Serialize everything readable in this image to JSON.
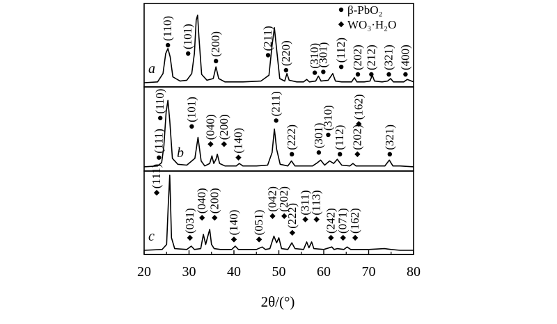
{
  "chart_data": {
    "type": "line",
    "xlabel": "2θ/(°)",
    "xlim": [
      20,
      80
    ],
    "x_ticks": [
      "20",
      "30",
      "40",
      "50",
      "60",
      "70",
      "80"
    ],
    "grid": false,
    "legend": {
      "placement": "top-right",
      "entries": [
        {
          "marker": "circle",
          "label": "β-PbO₂"
        },
        {
          "marker": "diamond",
          "label": "WO₃·H₂O"
        }
      ]
    },
    "series": [
      {
        "name": "a",
        "baseline": 0.05,
        "x": [
          20,
          23,
          24.2,
          24.8,
          25.3,
          25.8,
          26.4,
          28,
          29.5,
          30.6,
          31.2,
          31.6,
          31.9,
          32.2,
          32.8,
          34,
          35.4,
          36.0,
          36.6,
          38,
          42,
          46,
          47.8,
          48.5,
          49.0,
          49.5,
          50.2,
          51.3,
          51.8,
          52.3,
          54,
          55.5,
          56.2,
          56.8,
          58.2,
          58.8,
          59.4,
          61,
          62.0,
          62.6,
          64,
          66.2,
          66.8,
          67.4,
          69,
          70.3,
          70.8,
          71.3,
          73,
          74.2,
          74.9,
          75.5,
          77,
          77.8,
          78.6,
          80
        ],
        "y": [
          0.05,
          0.06,
          0.16,
          0.4,
          0.46,
          0.36,
          0.12,
          0.07,
          0.08,
          0.16,
          0.4,
          0.8,
          0.86,
          0.6,
          0.15,
          0.08,
          0.1,
          0.24,
          0.1,
          0.06,
          0.06,
          0.07,
          0.14,
          0.5,
          0.71,
          0.45,
          0.1,
          0.07,
          0.16,
          0.08,
          0.06,
          0.06,
          0.09,
          0.06,
          0.07,
          0.13,
          0.07,
          0.08,
          0.16,
          0.07,
          0.06,
          0.06,
          0.11,
          0.06,
          0.06,
          0.07,
          0.14,
          0.07,
          0.06,
          0.07,
          0.1,
          0.06,
          0.06,
          0.06,
          0.09,
          0.06
        ]
      },
      {
        "name": "b",
        "baseline": 0.05,
        "x": [
          20,
          23,
          23.9,
          24.4,
          24.9,
          25.3,
          25.7,
          26.3,
          27.5,
          29.5,
          31.3,
          32.0,
          32.7,
          33.5,
          34.6,
          35.1,
          35.5,
          36.0,
          36.3,
          36.8,
          38,
          40.5,
          41.2,
          42,
          45,
          47.5,
          48.5,
          49.0,
          49.5,
          50.3,
          52,
          52.8,
          53.6,
          55,
          57.5,
          58.6,
          59.3,
          60.2,
          61.3,
          62.2,
          63.0,
          64,
          65.8,
          66.5,
          67.2,
          68.5,
          70,
          72,
          73.6,
          74.6,
          75.4,
          77,
          80
        ],
        "y": [
          0.05,
          0.06,
          0.1,
          0.3,
          0.7,
          0.84,
          0.6,
          0.15,
          0.08,
          0.07,
          0.15,
          0.4,
          0.12,
          0.06,
          0.09,
          0.18,
          0.09,
          0.14,
          0.2,
          0.09,
          0.06,
          0.06,
          0.09,
          0.06,
          0.06,
          0.07,
          0.22,
          0.5,
          0.26,
          0.08,
          0.06,
          0.12,
          0.06,
          0.06,
          0.06,
          0.1,
          0.13,
          0.07,
          0.12,
          0.09,
          0.14,
          0.07,
          0.06,
          0.09,
          0.06,
          0.06,
          0.06,
          0.06,
          0.06,
          0.13,
          0.06,
          0.06,
          0.05
        ]
      },
      {
        "name": "c",
        "baseline": 0.05,
        "x": [
          20,
          24,
          25.0,
          25.4,
          25.7,
          26.1,
          26.8,
          29.5,
          30.5,
          31.2,
          32.6,
          33.2,
          33.7,
          34.1,
          34.6,
          35.0,
          35.6,
          37,
          39.5,
          40.3,
          41,
          45,
          46.3,
          47,
          48,
          48.9,
          49.5,
          50.0,
          50.6,
          52,
          52.9,
          53.6,
          55.5,
          56.2,
          56.7,
          57.3,
          57.8,
          60,
          61.8,
          62.3,
          63,
          64.5,
          65.2,
          66,
          67,
          70,
          73.5,
          75,
          77,
          80
        ],
        "y": [
          0.05,
          0.06,
          0.12,
          0.62,
          0.95,
          0.2,
          0.07,
          0.06,
          0.1,
          0.06,
          0.07,
          0.24,
          0.12,
          0.2,
          0.3,
          0.12,
          0.07,
          0.06,
          0.06,
          0.1,
          0.06,
          0.06,
          0.09,
          0.06,
          0.07,
          0.22,
          0.14,
          0.2,
          0.07,
          0.06,
          0.14,
          0.07,
          0.06,
          0.15,
          0.08,
          0.15,
          0.07,
          0.06,
          0.09,
          0.06,
          0.07,
          0.06,
          0.09,
          0.06,
          0.06,
          0.06,
          0.07,
          0.06,
          0.05,
          0.05
        ]
      }
    ],
    "annotations": [
      {
        "panel": "a",
        "x": 25.3,
        "y": 0.5,
        "marker": "circle",
        "label": "(110)"
      },
      {
        "panel": "a",
        "x": 29.8,
        "y": 0.4,
        "marker": "circle",
        "label": "(101)"
      },
      {
        "panel": "a",
        "x": 36.0,
        "y": 0.31,
        "marker": "circle",
        "label": "(200)"
      },
      {
        "panel": "a",
        "x": 47.6,
        "y": 0.38,
        "marker": "circle",
        "label": "(211)"
      },
      {
        "panel": "a",
        "x": 51.6,
        "y": 0.2,
        "marker": "circle",
        "label": "(220)"
      },
      {
        "panel": "a",
        "x": 58.0,
        "y": 0.17,
        "marker": "circle",
        "label": "(310)"
      },
      {
        "panel": "a",
        "x": 59.9,
        "y": 0.18,
        "marker": "circle",
        "label": "(301)"
      },
      {
        "panel": "a",
        "x": 63.9,
        "y": 0.24,
        "marker": "circle",
        "label": "(112)"
      },
      {
        "panel": "a",
        "x": 67.6,
        "y": 0.15,
        "marker": "circle",
        "label": "(202)"
      },
      {
        "panel": "a",
        "x": 70.6,
        "y": 0.15,
        "marker": "circle",
        "label": "(212)"
      },
      {
        "panel": "a",
        "x": 74.5,
        "y": 0.15,
        "marker": "circle",
        "label": "(321)"
      },
      {
        "panel": "a",
        "x": 78.2,
        "y": 0.15,
        "marker": "circle",
        "label": "(400)"
      },
      {
        "panel": "b",
        "x": 23.3,
        "y": 0.16,
        "marker": "circle",
        "label": "(111)"
      },
      {
        "panel": "b",
        "x": 23.6,
        "y": 0.63,
        "marker": "circle",
        "label": "(110)"
      },
      {
        "panel": "b",
        "x": 30.6,
        "y": 0.53,
        "marker": "circle",
        "label": "(101)"
      },
      {
        "panel": "b",
        "x": 34.8,
        "y": 0.32,
        "marker": "diamond",
        "label": "(040)"
      },
      {
        "panel": "b",
        "x": 37.8,
        "y": 0.32,
        "marker": "diamond",
        "label": "(200)"
      },
      {
        "panel": "b",
        "x": 41.0,
        "y": 0.16,
        "marker": "diamond",
        "label": "(140)"
      },
      {
        "panel": "b",
        "x": 49.4,
        "y": 0.6,
        "marker": "circle",
        "label": "(211)"
      },
      {
        "panel": "b",
        "x": 52.9,
        "y": 0.2,
        "marker": "circle",
        "label": "(222)"
      },
      {
        "panel": "b",
        "x": 58.9,
        "y": 0.22,
        "marker": "circle",
        "label": "(301)"
      },
      {
        "panel": "b",
        "x": 61.0,
        "y": 0.43,
        "marker": "circle",
        "label": "(310)"
      },
      {
        "panel": "b",
        "x": 63.6,
        "y": 0.2,
        "marker": "circle",
        "label": "(112)"
      },
      {
        "panel": "b",
        "x": 67.5,
        "y": 0.2,
        "marker": "diamond",
        "label": "(202)"
      },
      {
        "panel": "b",
        "x": 67.8,
        "y": 0.56,
        "marker": "diamond",
        "label": "(162)"
      },
      {
        "panel": "b",
        "x": 74.7,
        "y": 0.2,
        "marker": "circle",
        "label": "(321)"
      },
      {
        "panel": "c",
        "x": 22.8,
        "y": 0.74,
        "marker": "diamond",
        "label": "(111)"
      },
      {
        "panel": "c",
        "x": 30.2,
        "y": 0.2,
        "marker": "diamond",
        "label": "(031)"
      },
      {
        "panel": "c",
        "x": 32.9,
        "y": 0.44,
        "marker": "diamond",
        "label": "(040)"
      },
      {
        "panel": "c",
        "x": 35.7,
        "y": 0.44,
        "marker": "diamond",
        "label": "(200)"
      },
      {
        "panel": "c",
        "x": 40.0,
        "y": 0.18,
        "marker": "diamond",
        "label": "(140)"
      },
      {
        "panel": "c",
        "x": 45.6,
        "y": 0.18,
        "marker": "diamond",
        "label": "(051)"
      },
      {
        "panel": "c",
        "x": 48.6,
        "y": 0.46,
        "marker": "diamond",
        "label": "(042)"
      },
      {
        "panel": "c",
        "x": 51.2,
        "y": 0.46,
        "marker": "diamond",
        "label": "(202)"
      },
      {
        "panel": "c",
        "x": 53.0,
        "y": 0.26,
        "marker": "diamond",
        "label": "(222)"
      },
      {
        "panel": "c",
        "x": 55.9,
        "y": 0.42,
        "marker": "diamond",
        "label": "(311)"
      },
      {
        "panel": "c",
        "x": 58.4,
        "y": 0.42,
        "marker": "diamond",
        "label": "(113)"
      },
      {
        "panel": "c",
        "x": 61.6,
        "y": 0.2,
        "marker": "diamond",
        "label": "(242)"
      },
      {
        "panel": "c",
        "x": 64.3,
        "y": 0.2,
        "marker": "diamond",
        "label": "(071)"
      },
      {
        "panel": "c",
        "x": 67.0,
        "y": 0.2,
        "marker": "diamond",
        "label": "(162)"
      }
    ]
  }
}
